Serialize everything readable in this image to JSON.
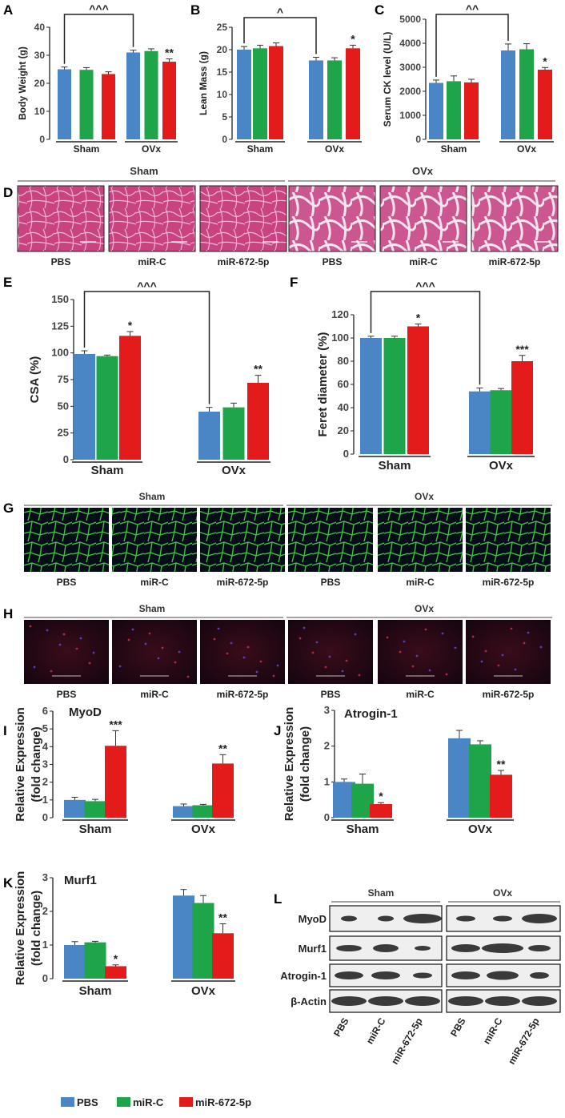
{
  "colors": {
    "pbs": "#4a86c6",
    "mirc": "#1ea54a",
    "mir672": "#e31b1b",
    "axis": "#222222",
    "he_bg": "#c8437f",
    "he_light": "#e6a6c4",
    "if_green": "#3fc23f",
    "cy3_bg": "#1a0810"
  },
  "panels": {
    "A": "A",
    "B": "B",
    "C": "C",
    "D": "D",
    "E": "E",
    "F": "F",
    "G": "G",
    "H": "H",
    "I": "I",
    "J": "J",
    "K": "K",
    "L": "L"
  },
  "groups": {
    "sham": "Sham",
    "ovx": "OVx"
  },
  "treatments": [
    "PBS",
    "miR-C",
    "miR-672-5p"
  ],
  "legend": [
    {
      "label": "PBS",
      "color": "#4a86c6"
    },
    {
      "label": "miR-C",
      "color": "#1ea54a"
    },
    {
      "label": "miR-672-5p",
      "color": "#e31b1b"
    }
  ],
  "blot": {
    "header_sham": "Sham",
    "header_ovx": "OVx",
    "rows": [
      "MyoD",
      "Murf1",
      "Atrogin-1",
      "β-Actin"
    ],
    "lanes": [
      "PBS",
      "miR-C",
      "miR-672-5p",
      "PBS",
      "miR-C",
      "miR-672-5p"
    ]
  },
  "chart_data": [
    {
      "panel": "A",
      "type": "bar",
      "ylabel": "Body Weight (g)",
      "ylim": [
        0,
        40
      ],
      "yticks": [
        0,
        10,
        20,
        30,
        40
      ],
      "categories": [
        "Sham",
        "OVx"
      ],
      "series": [
        {
          "name": "PBS",
          "values": [
            25,
            31
          ],
          "errors": [
            0.8,
            0.8
          ]
        },
        {
          "name": "miR-C",
          "values": [
            24.8,
            31.5
          ],
          "errors": [
            0.8,
            0.8
          ]
        },
        {
          "name": "miR-672-5p",
          "values": [
            23.3,
            27.7
          ],
          "errors": [
            0.8,
            1.0
          ]
        }
      ],
      "sig": [
        {
          "series": 2,
          "cat": 1,
          "text": "**"
        }
      ],
      "bracket": {
        "text": "^^^",
        "from": [
          0,
          0
        ],
        "to": [
          0,
          1
        ]
      }
    },
    {
      "panel": "B",
      "type": "bar",
      "ylabel": "Lean Mass (g)",
      "ylim": [
        0,
        25
      ],
      "yticks": [
        0,
        5,
        10,
        15,
        20,
        25
      ],
      "categories": [
        "Sham",
        "OVx"
      ],
      "series": [
        {
          "name": "PBS",
          "values": [
            20,
            17.6
          ],
          "errors": [
            0.7,
            0.7
          ]
        },
        {
          "name": "miR-C",
          "values": [
            20.3,
            17.6
          ],
          "errors": [
            0.7,
            0.6
          ]
        },
        {
          "name": "miR-672-5p",
          "values": [
            20.8,
            20.3
          ],
          "errors": [
            0.7,
            0.7
          ]
        }
      ],
      "sig": [
        {
          "series": 2,
          "cat": 1,
          "text": "*"
        }
      ],
      "bracket": {
        "text": "^",
        "from": [
          0,
          0
        ],
        "to": [
          0,
          1
        ]
      }
    },
    {
      "panel": "C",
      "type": "bar",
      "ylabel": "Serum CK level (U/L)",
      "ylim": [
        0,
        5000
      ],
      "yticks": [
        0,
        1000,
        2000,
        3000,
        4000,
        5000
      ],
      "categories": [
        "Sham",
        "OVx"
      ],
      "series": [
        {
          "name": "PBS",
          "values": [
            2350,
            3700
          ],
          "errors": [
            120,
            270
          ]
        },
        {
          "name": "miR-C",
          "values": [
            2420,
            3750
          ],
          "errors": [
            220,
            230
          ]
        },
        {
          "name": "miR-672-5p",
          "values": [
            2370,
            2900
          ],
          "errors": [
            130,
            90
          ]
        }
      ],
      "sig": [
        {
          "series": 2,
          "cat": 1,
          "text": "*"
        }
      ],
      "bracket": {
        "text": "^^",
        "from": [
          0,
          0
        ],
        "to": [
          0,
          1
        ]
      }
    },
    {
      "panel": "E",
      "type": "bar",
      "ylabel": "CSA (%)",
      "ylim": [
        0,
        150
      ],
      "yticks": [
        0,
        25,
        50,
        75,
        100,
        125,
        150
      ],
      "categories": [
        "Sham",
        "OVx"
      ],
      "series": [
        {
          "name": "PBS",
          "values": [
            99,
            45
          ],
          "errors": [
            3,
            4
          ]
        },
        {
          "name": "miR-C",
          "values": [
            97,
            49
          ],
          "errors": [
            1,
            4
          ]
        },
        {
          "name": "miR-672-5p",
          "values": [
            116,
            72
          ],
          "errors": [
            4,
            7
          ]
        }
      ],
      "sig": [
        {
          "series": 2,
          "cat": 0,
          "text": "*"
        },
        {
          "series": 2,
          "cat": 1,
          "text": "**"
        }
      ],
      "bracket": {
        "text": "^^^",
        "from": [
          0,
          0
        ],
        "to": [
          0,
          1
        ]
      }
    },
    {
      "panel": "F",
      "type": "bar",
      "ylabel": "Feret diameter (%)",
      "ylim": [
        0,
        120
      ],
      "yticks": [
        0,
        20,
        40,
        60,
        80,
        100,
        120
      ],
      "categories": [
        "Sham",
        "OVx"
      ],
      "series": [
        {
          "name": "PBS",
          "values": [
            100,
            54
          ],
          "errors": [
            1.5,
            3
          ]
        },
        {
          "name": "miR-C",
          "values": [
            100,
            55
          ],
          "errors": [
            1.5,
            1.5
          ]
        },
        {
          "name": "miR-672-5p",
          "values": [
            110,
            80
          ],
          "errors": [
            2,
            5
          ]
        }
      ],
      "sig": [
        {
          "series": 2,
          "cat": 0,
          "text": "*"
        },
        {
          "series": 2,
          "cat": 1,
          "text": "***"
        }
      ],
      "bracket": {
        "text": "^^^",
        "from": [
          0,
          0
        ],
        "to": [
          0,
          1
        ]
      }
    },
    {
      "panel": "I",
      "type": "bar",
      "title": "MyoD",
      "ylabel": "Relative Expression (fold change)",
      "ylim": [
        0,
        6
      ],
      "yticks": [
        0,
        1,
        2,
        3,
        4,
        5,
        6
      ],
      "categories": [
        "Sham",
        "OVx"
      ],
      "series": [
        {
          "name": "PBS",
          "values": [
            1.0,
            0.65
          ],
          "errors": [
            0.15,
            0.12
          ]
        },
        {
          "name": "miR-C",
          "values": [
            0.93,
            0.7
          ],
          "errors": [
            0.1,
            0.05
          ]
        },
        {
          "name": "miR-672-5p",
          "values": [
            4.05,
            3.05
          ],
          "errors": [
            0.85,
            0.5
          ]
        }
      ],
      "sig": [
        {
          "series": 2,
          "cat": 0,
          "text": "***"
        },
        {
          "series": 2,
          "cat": 1,
          "text": "**"
        }
      ]
    },
    {
      "panel": "J",
      "type": "bar",
      "title": "Atrogin-1",
      "ylabel": "Relative Expression (fold change)",
      "ylim": [
        0,
        3
      ],
      "yticks": [
        0,
        1,
        2,
        3
      ],
      "categories": [
        "Sham",
        "OVx"
      ],
      "series": [
        {
          "name": "PBS",
          "values": [
            1.0,
            2.22
          ],
          "errors": [
            0.08,
            0.22
          ]
        },
        {
          "name": "miR-C",
          "values": [
            0.95,
            2.05
          ],
          "errors": [
            0.27,
            0.1
          ]
        },
        {
          "name": "miR-672-5p",
          "values": [
            0.38,
            1.2
          ],
          "errors": [
            0.04,
            0.12
          ]
        }
      ],
      "sig": [
        {
          "series": 2,
          "cat": 0,
          "text": "*"
        },
        {
          "series": 2,
          "cat": 1,
          "text": "**"
        }
      ]
    },
    {
      "panel": "K",
      "type": "bar",
      "title": "Murf1",
      "ylabel": "Relative Expression (fold change)",
      "ylim": [
        0,
        3
      ],
      "yticks": [
        0,
        1,
        2,
        3
      ],
      "categories": [
        "Sham",
        "OVx"
      ],
      "series": [
        {
          "name": "PBS",
          "values": [
            1.0,
            2.47
          ],
          "errors": [
            0.1,
            0.18
          ]
        },
        {
          "name": "miR-C",
          "values": [
            1.08,
            2.25
          ],
          "errors": [
            0.03,
            0.22
          ]
        },
        {
          "name": "miR-672-5p",
          "values": [
            0.37,
            1.35
          ],
          "errors": [
            0.04,
            0.28
          ]
        }
      ],
      "sig": [
        {
          "series": 2,
          "cat": 0,
          "text": "*"
        },
        {
          "series": 2,
          "cat": 1,
          "text": "**"
        }
      ]
    }
  ]
}
